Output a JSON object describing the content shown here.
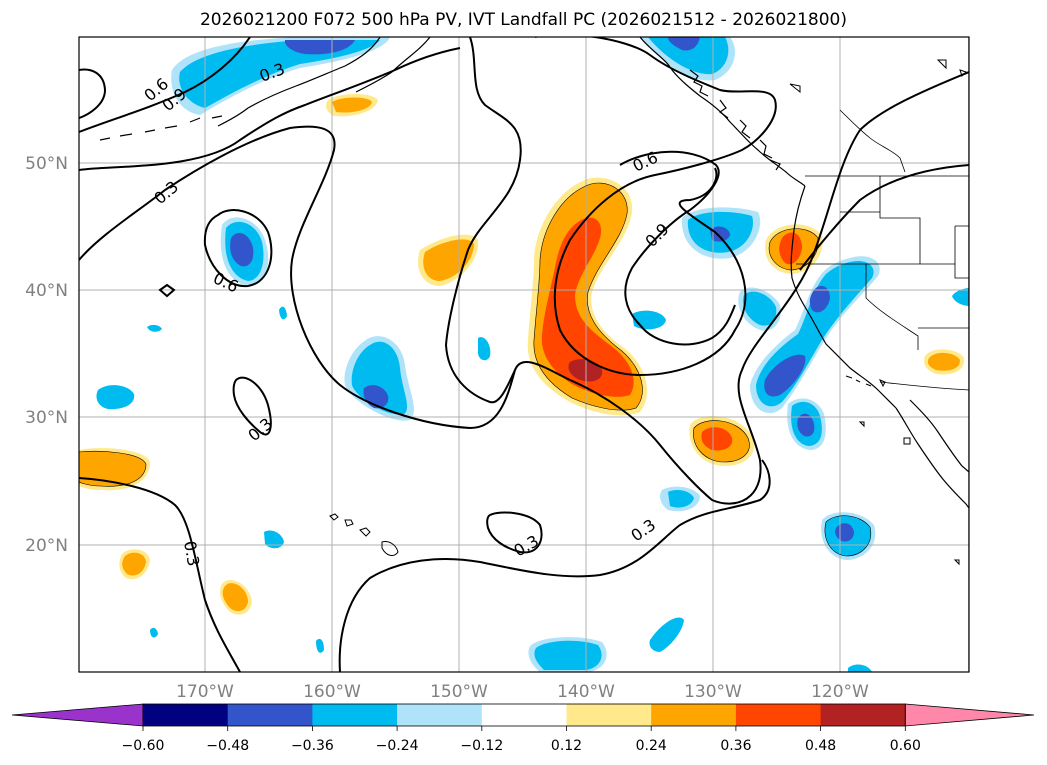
{
  "title": "2026021200 F072 500 hPa PV, IVT Landfall PC (2026021512 - 2026021800)",
  "lon_labels": [
    "170°W",
    "160°W",
    "150°W",
    "140°W",
    "130°W",
    "120°W"
  ],
  "lat_labels": [
    "50°N",
    "40°N",
    "30°N",
    "20°N"
  ],
  "contour_labels": [
    "0.3",
    "0.6",
    "0.9",
    "0.3",
    "0.6",
    "0.3",
    "0.6",
    "0.9",
    "0.3",
    "0.3",
    "0.3"
  ],
  "colorbar": {
    "ticks": [
      "−0.60",
      "−0.48",
      "−0.36",
      "−0.24",
      "−0.12",
      "0.12",
      "0.24",
      "0.36",
      "0.48",
      "0.60"
    ],
    "colors": [
      "#9933cc",
      "#000080",
      "#3355cc",
      "#00bbf0",
      "#aee3fa",
      "#ffffff",
      "#ffe98a",
      "#ffa500",
      "#ff4500",
      "#b22222",
      "#ff88aa"
    ]
  },
  "palette": {
    "neg_light": "#aee3fa",
    "neg_mid": "#00bbf0",
    "neg_dark": "#3355cc",
    "neg_darkest": "#2a3ab0",
    "pos_light": "#ffe98a",
    "pos_mid": "#ffa500",
    "pos_dark": "#ff4500",
    "pos_darkest": "#b22222"
  }
}
